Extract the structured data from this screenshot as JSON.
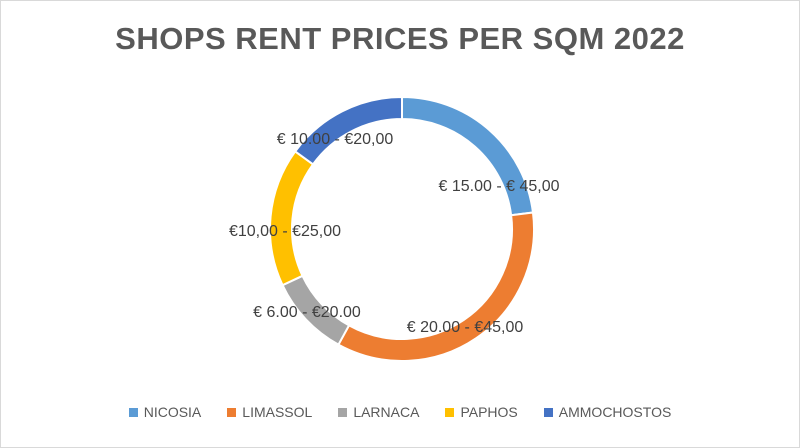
{
  "chart_data": {
    "type": "pie",
    "title": "SHOPS RENT PRICES PER SQM 2022",
    "categories": [
      "NICOSIA",
      "LIMASSOL",
      "LARNACA",
      "PAPHOS",
      "AMMOCHOSTOS"
    ],
    "values": [
      23,
      35,
      10,
      17,
      15
    ],
    "labels": [
      "€ 15.00  - € 45,00",
      "€ 20.00  - €45,00",
      "€ 6.00 - €20.00",
      "€10,00 - €25,00",
      "€ 10.00  - €20,00"
    ],
    "colors": [
      "#5B9BD5",
      "#ED7D31",
      "#A5A5A5",
      "#FFC000",
      "#4472C4"
    ],
    "legend": "bottom"
  }
}
